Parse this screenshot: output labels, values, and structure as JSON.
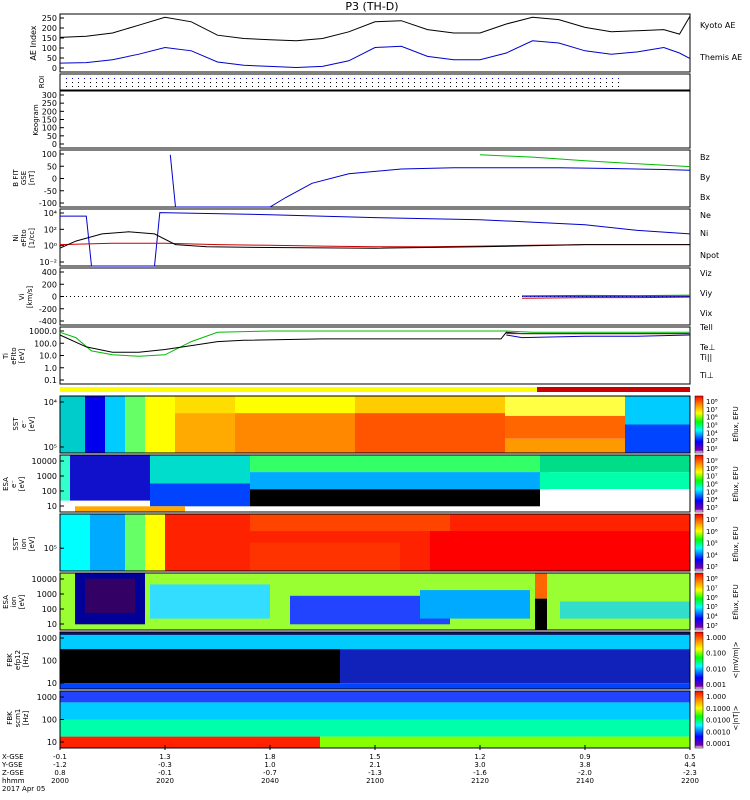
{
  "title": "P3 (TH-D)",
  "colors": {
    "kyoto": "#0000cc",
    "themis": "#000000",
    "bz": "#cc0000",
    "by": "#00bb00",
    "bx": "#0000cc",
    "ne": "#cc0000",
    "ni": "#0000cc",
    "npot": "#000000",
    "vx": "#0000cc",
    "vy": "#00bb00",
    "vz": "#cc0000",
    "telle": "#000000",
    "ti_para": "#00bb00",
    "ti_perp": "#0000cc",
    "te_perp": "#cc0000"
  },
  "panels": {
    "ae": {
      "ylabel": "AE Index",
      "ticks": [
        "250",
        "200",
        "150",
        "100",
        "50",
        "0"
      ],
      "legend": [
        "Kyoto AE",
        "Themis AE"
      ]
    },
    "roi": {
      "ylabel": "ROI"
    },
    "keogram": {
      "ylabel": "Keogram",
      "ticks": [
        "300",
        "250",
        "200",
        "150",
        "100",
        "50",
        "0"
      ]
    },
    "bfield": {
      "ylabel": [
        "B FIT",
        "GSE",
        "[nT]"
      ],
      "ticks": [
        "100",
        "50",
        "0",
        "-50",
        "-100"
      ],
      "legend": [
        "Bz",
        "By",
        "Bx"
      ]
    },
    "density": {
      "ylabel": [
        "Ni",
        "eFIto",
        "[1/cc]"
      ],
      "ticks": [
        "10⁴",
        "10²",
        "10⁰",
        "10⁻²"
      ],
      "legend": [
        "Ne",
        "Ni",
        "Npot"
      ]
    },
    "velocity": {
      "ylabel": [
        "Vi",
        "[km/s]"
      ],
      "ticks": [
        "400",
        "200",
        "0",
        "-200",
        "-400"
      ],
      "legend": [
        "Viz",
        "Viy",
        "Vix"
      ]
    },
    "temp": {
      "ylabel": [
        "Ti",
        "eFIto",
        "[eV]"
      ],
      "ticks": [
        "1000.0",
        "100.0",
        "10.0",
        "1.0",
        "0.1"
      ],
      "legend": [
        "Tell",
        "Te⊥",
        "Ti||",
        "Ti⊥"
      ]
    },
    "sst_e": {
      "ylabel": [
        "SST",
        "e⁻",
        "[eV]"
      ],
      "ticks": [
        "10⁴",
        "10⁵"
      ],
      "cbticks": [
        "10⁸",
        "10⁷",
        "10⁶",
        "10⁵",
        "10⁴",
        "10³",
        "10²"
      ],
      "cblabel": "Eflux, EFU"
    },
    "esa_e": {
      "ylabel": [
        "ESA",
        "e⁻",
        "[eV]"
      ],
      "ticks": [
        "10000",
        "1000",
        "100",
        "10"
      ],
      "cbticks": [
        "10⁹",
        "10⁸",
        "10⁷",
        "10⁶",
        "10⁵",
        "10⁴",
        "10³"
      ],
      "cblabel": "Eflux, EFU"
    },
    "sst_i": {
      "ylabel": [
        "SST",
        "ion",
        "[eV]"
      ],
      "ticks": [
        "10⁵"
      ],
      "cbticks": [
        "10⁷",
        "10⁶",
        "10⁵",
        "10⁴",
        "10³"
      ],
      "cblabel": "Eflux, EFU"
    },
    "esa_i": {
      "ylabel": [
        "ESA",
        "ion",
        "[eV]"
      ],
      "ticks": [
        "10000",
        "1000",
        "100",
        "10"
      ],
      "cbticks": [
        "10⁸",
        "10⁷",
        "10⁶",
        "10⁵",
        "10⁴",
        "10³"
      ],
      "cblabel": "Eflux, EFU"
    },
    "fbk_e": {
      "ylabel": [
        "FBK",
        "efp12",
        "[Hz]"
      ],
      "ticks": [
        "1000",
        "100",
        "10"
      ],
      "cbticks": [
        "1.000",
        "0.100",
        "0.010",
        "0.001"
      ],
      "cblabel": "<|mV/m|>"
    },
    "fbk_b": {
      "ylabel": [
        "FBK",
        "scm1",
        "[Hz]"
      ],
      "ticks": [
        "1000",
        "100",
        "10"
      ],
      "cbticks": [
        "1.000",
        "0.1000",
        "0.0100",
        "0.0010",
        "0.0001"
      ],
      "cblabel": "<|nT|>"
    }
  },
  "xaxis": {
    "row_labels": [
      "X-GSE",
      "Y-GSE",
      "Z-GSE",
      "hhmm",
      "2017 Apr 05"
    ],
    "columns": [
      {
        "x": "-0.1",
        "y": "-1.2",
        "z": "0.8",
        "t": "2000"
      },
      {
        "x": "1.3",
        "y": "-0.3",
        "z": "-0.1",
        "t": "2020"
      },
      {
        "x": "1.8",
        "y": "1.0",
        "z": "-0.7",
        "t": "2040"
      },
      {
        "x": "1.5",
        "y": "2.1",
        "z": "-1.3",
        "t": "2100"
      },
      {
        "x": "1.2",
        "y": "3.0",
        "z": "-1.6",
        "t": "2120"
      },
      {
        "x": "0.9",
        "y": "3.8",
        "z": "-2.0",
        "t": "2140"
      },
      {
        "x": "0.5",
        "y": "4.4",
        "z": "-2.3",
        "t": "2200"
      }
    ]
  },
  "chart_data": {
    "type": "line",
    "title": "P3 (TH-D)",
    "x_unit": "minutes after 2000 UT",
    "x_range": [
      0,
      120
    ],
    "ae_index": {
      "ylim": [
        0,
        260
      ],
      "series": [
        {
          "name": "Kyoto AE",
          "x": [
            0,
            5,
            10,
            15,
            20,
            25,
            30,
            35,
            40,
            45,
            50,
            55,
            60,
            65,
            70,
            75,
            80,
            85,
            90,
            95,
            100,
            105,
            110,
            115,
            118,
            120
          ],
          "y": [
            40,
            42,
            55,
            80,
            110,
            95,
            45,
            30,
            25,
            20,
            25,
            50,
            110,
            115,
            70,
            55,
            55,
            85,
            140,
            130,
            95,
            80,
            90,
            110,
            85,
            60
          ]
        },
        {
          "name": "Themis AE",
          "x": [
            0,
            5,
            10,
            15,
            20,
            25,
            30,
            35,
            40,
            45,
            50,
            55,
            60,
            65,
            70,
            75,
            80,
            85,
            90,
            95,
            100,
            105,
            110,
            115,
            118,
            120
          ],
          "y": [
            155,
            160,
            175,
            210,
            245,
            225,
            165,
            150,
            145,
            140,
            150,
            180,
            225,
            230,
            190,
            175,
            175,
            215,
            245,
            235,
            200,
            180,
            185,
            190,
            170,
            250
          ]
        }
      ]
    },
    "b_field": {
      "ylim": [
        -120,
        120
      ],
      "series": [
        {
          "name": "Bz",
          "x": [],
          "y": []
        },
        {
          "name": "By",
          "x": [
            80,
            90,
            100,
            110,
            120
          ],
          "y": [
            100,
            90,
            75,
            62,
            50
          ]
        },
        {
          "name": "Bx",
          "x": [
            21,
            22,
            40,
            43,
            48,
            55,
            65,
            75,
            85,
            95,
            105,
            115,
            120
          ],
          "y": [
            100,
            -120,
            -120,
            -80,
            -20,
            20,
            40,
            45,
            45,
            45,
            42,
            38,
            35
          ]
        }
      ]
    },
    "density": {
      "ylim_log10": [
        -3,
        5
      ],
      "series": [
        {
          "name": "Ne",
          "x": [
            0,
            10,
            20,
            30,
            40,
            50,
            60,
            70,
            80,
            90,
            100,
            110,
            120
          ],
          "y_log10": [
            0,
            0.2,
            0.2,
            0,
            -0.1,
            -0.2,
            -0.3,
            -0.3,
            -0.2,
            -0.1,
            0,
            0,
            0
          ]
        },
        {
          "name": "Ni",
          "x": [
            0,
            5,
            6,
            18,
            19,
            40,
            60,
            80,
            100,
            110,
            120
          ],
          "y_log10": [
            4,
            4,
            -3,
            -3,
            4.5,
            4.2,
            3.8,
            3.5,
            2.8,
            2,
            1.5
          ]
        },
        {
          "name": "Npot",
          "x": [
            0,
            3,
            8,
            13,
            18,
            22,
            28,
            40,
            60,
            80,
            100,
            110,
            120
          ],
          "y_log10": [
            -0.5,
            0.5,
            1.5,
            1.8,
            1.5,
            0,
            -0.3,
            -0.4,
            -0.5,
            -0.3,
            0,
            0,
            0
          ]
        }
      ]
    },
    "velocity": {
      "ylim": [
        -500,
        500
      ],
      "series": [
        {
          "name": "Viz",
          "x": [
            88,
            100,
            110,
            120
          ],
          "y": [
            -30,
            -20,
            -20,
            -10
          ]
        },
        {
          "name": "Viy",
          "x": [
            88,
            100,
            110,
            120
          ],
          "y": [
            10,
            20,
            15,
            25
          ]
        },
        {
          "name": "Vix",
          "x": [
            88,
            100,
            110,
            120
          ],
          "y": [
            5,
            5,
            5,
            5
          ]
        }
      ]
    },
    "temperature": {
      "ylim_log10": [
        -1,
        3.3
      ],
      "series": [
        {
          "name": "Ti||",
          "x": [
            0,
            3,
            6,
            10,
            15,
            20,
            25,
            30,
            40,
            60,
            80,
            85,
            90,
            100,
            110,
            120
          ],
          "y_log10": [
            2.9,
            2.5,
            1.5,
            1.2,
            1.1,
            1.2,
            2.2,
            2.9,
            3.0,
            3.0,
            3.0,
            3.0,
            2.9,
            2.9,
            2.9,
            2.9
          ]
        },
        {
          "name": "Ti⊥",
          "x": [
            85,
            88,
            100,
            110,
            120
          ],
          "y_log10": [
            2.7,
            2.5,
            2.6,
            2.6,
            2.7
          ]
        },
        {
          "name": "Tell",
          "x": [
            0,
            5,
            10,
            15,
            20,
            25,
            30,
            35,
            50,
            60,
            80,
            84,
            85,
            88,
            100,
            120
          ],
          "y_log10": [
            2.7,
            1.8,
            1.4,
            1.4,
            1.6,
            1.9,
            2.2,
            2.3,
            2.4,
            2.4,
            2.4,
            2.4,
            2.9,
            2.8,
            2.8,
            2.8
          ]
        },
        {
          "name": "Te⊥",
          "x": [
            85,
            120
          ],
          "y_log10": [
            2.8,
            2.8
          ]
        }
      ]
    }
  }
}
